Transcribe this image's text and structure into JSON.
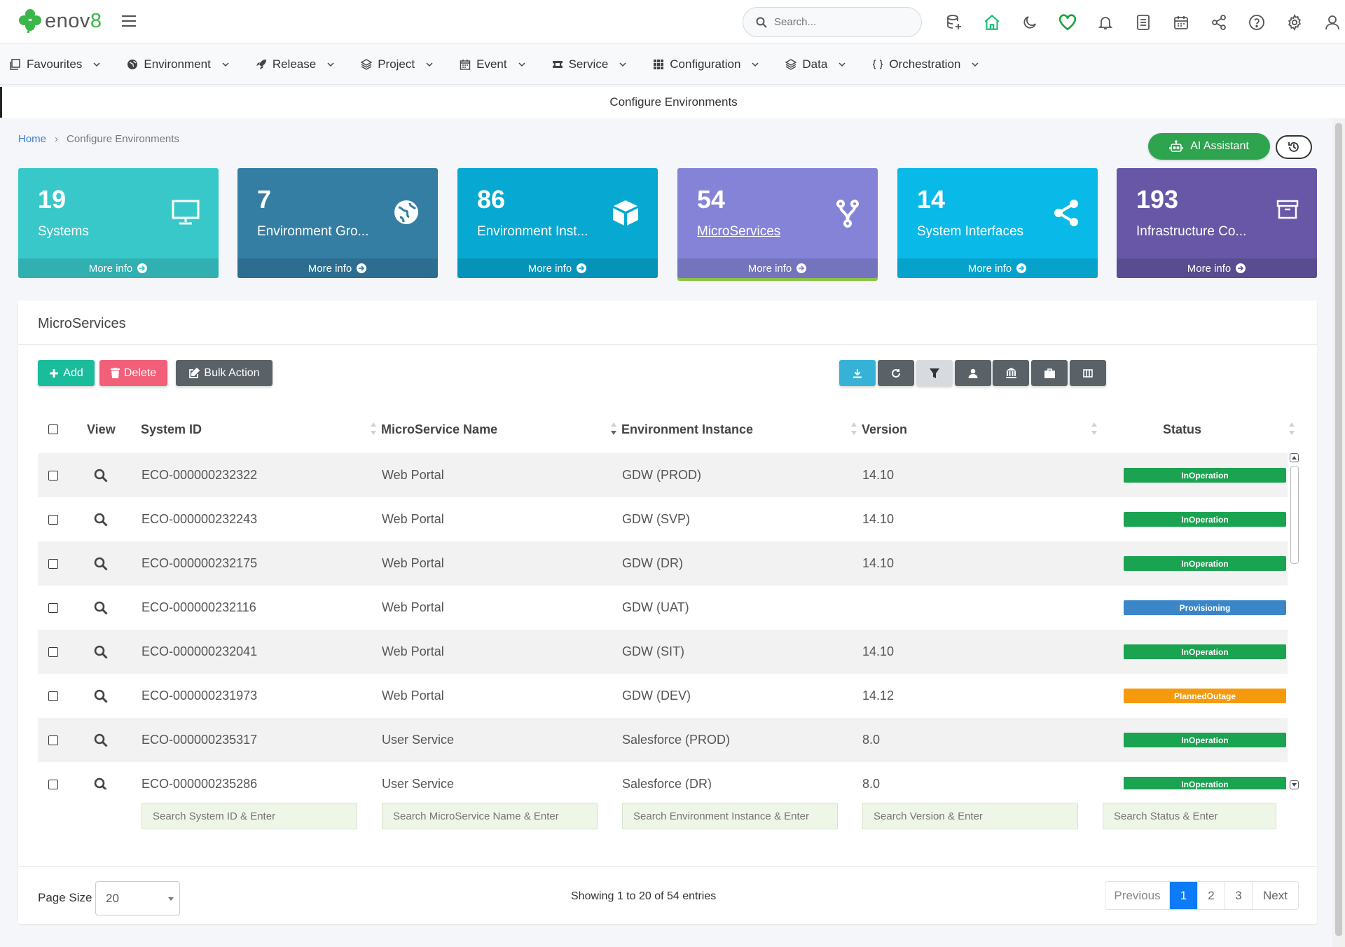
{
  "brand": {
    "logo_text_prefix": "enov",
    "logo_text_suffix": "8"
  },
  "search": {
    "placeholder": "Search..."
  },
  "nav": [
    {
      "label": "Favourites",
      "icon": "favourites-icon"
    },
    {
      "label": "Environment",
      "icon": "globe-icon"
    },
    {
      "label": "Release",
      "icon": "rocket-icon"
    },
    {
      "label": "Project",
      "icon": "layers-icon"
    },
    {
      "label": "Event",
      "icon": "calendar-icon"
    },
    {
      "label": "Service",
      "icon": "ticket-icon"
    },
    {
      "label": "Configuration",
      "icon": "grid-icon"
    },
    {
      "label": "Data",
      "icon": "layers-icon"
    },
    {
      "label": "Orchestration",
      "icon": "braces-icon"
    }
  ],
  "page_title": "Configure Environments",
  "breadcrumb": {
    "home": "Home",
    "separator": "›",
    "current": "Configure Environments"
  },
  "ai_button": {
    "label": "AI Assistant"
  },
  "cards": [
    {
      "count": "19",
      "label": "Systems",
      "more": "More info",
      "color": "#39c8c9",
      "icon": "monitor-icon"
    },
    {
      "count": "7",
      "label": "Environment Gro...",
      "more": "More info",
      "color": "#347ea4",
      "icon": "globe-icon"
    },
    {
      "count": "86",
      "label": "Environment Inst...",
      "more": "More info",
      "color": "#07a8d1",
      "icon": "cube-icon"
    },
    {
      "count": "54",
      "label": "MicroServices",
      "more": "More info",
      "color": "#8583d8",
      "icon": "fork-icon"
    },
    {
      "count": "14",
      "label": "System Interfaces",
      "more": "More info",
      "color": "#09b9e8",
      "icon": "share-icon"
    },
    {
      "count": "193",
      "label": "Infrastructure Co...",
      "more": "More info",
      "color": "#6757a6",
      "icon": "archive-icon"
    }
  ],
  "panel": {
    "title": "MicroServices",
    "buttons": {
      "add": "Add",
      "delete": "Delete",
      "bulk": "Bulk Action"
    }
  },
  "columns": {
    "view": "View",
    "system_id": "System ID",
    "name": "MicroService Name",
    "env": "Environment Instance",
    "version": "Version",
    "status": "Status"
  },
  "rows": [
    {
      "id": "ECO-000000232322",
      "name": "Web Portal",
      "env": "GDW (PROD)",
      "version": "14.10",
      "status": "InOperation"
    },
    {
      "id": "ECO-000000232243",
      "name": "Web Portal",
      "env": "GDW (SVP)",
      "version": "14.10",
      "status": "InOperation"
    },
    {
      "id": "ECO-000000232175",
      "name": "Web Portal",
      "env": "GDW (DR)",
      "version": "14.10",
      "status": "InOperation"
    },
    {
      "id": "ECO-000000232116",
      "name": "Web Portal",
      "env": "GDW (UAT)",
      "version": "",
      "status": "Provisioning"
    },
    {
      "id": "ECO-000000232041",
      "name": "Web Portal",
      "env": "GDW (SIT)",
      "version": "14.10",
      "status": "InOperation"
    },
    {
      "id": "ECO-000000231973",
      "name": "Web Portal",
      "env": "GDW (DEV)",
      "version": "14.12",
      "status": "PlannedOutage"
    },
    {
      "id": "ECO-000000235317",
      "name": "User Service",
      "env": "Salesforce (PROD)",
      "version": "8.0",
      "status": "InOperation"
    },
    {
      "id": "ECO-000000235286",
      "name": "User Service",
      "env": "Salesforce (DR)",
      "version": "8.0",
      "status": "InOperation"
    }
  ],
  "status_colors": {
    "InOperation": "#1aa350",
    "Provisioning": "#3a86c8",
    "PlannedOutage": "#f59a0f"
  },
  "filters": {
    "system_id": "Search System ID & Enter",
    "name": "Search MicroService Name & Enter",
    "env": "Search Environment Instance & Enter",
    "version": "Search Version & Enter",
    "status": "Search Status & Enter"
  },
  "footer": {
    "page_size_label": "Page Size",
    "page_size_value": "20",
    "showing": "Showing 1 to 20 of 54 entries",
    "pages": [
      "Previous",
      "1",
      "2",
      "3",
      "Next"
    ],
    "active_page": "1"
  }
}
